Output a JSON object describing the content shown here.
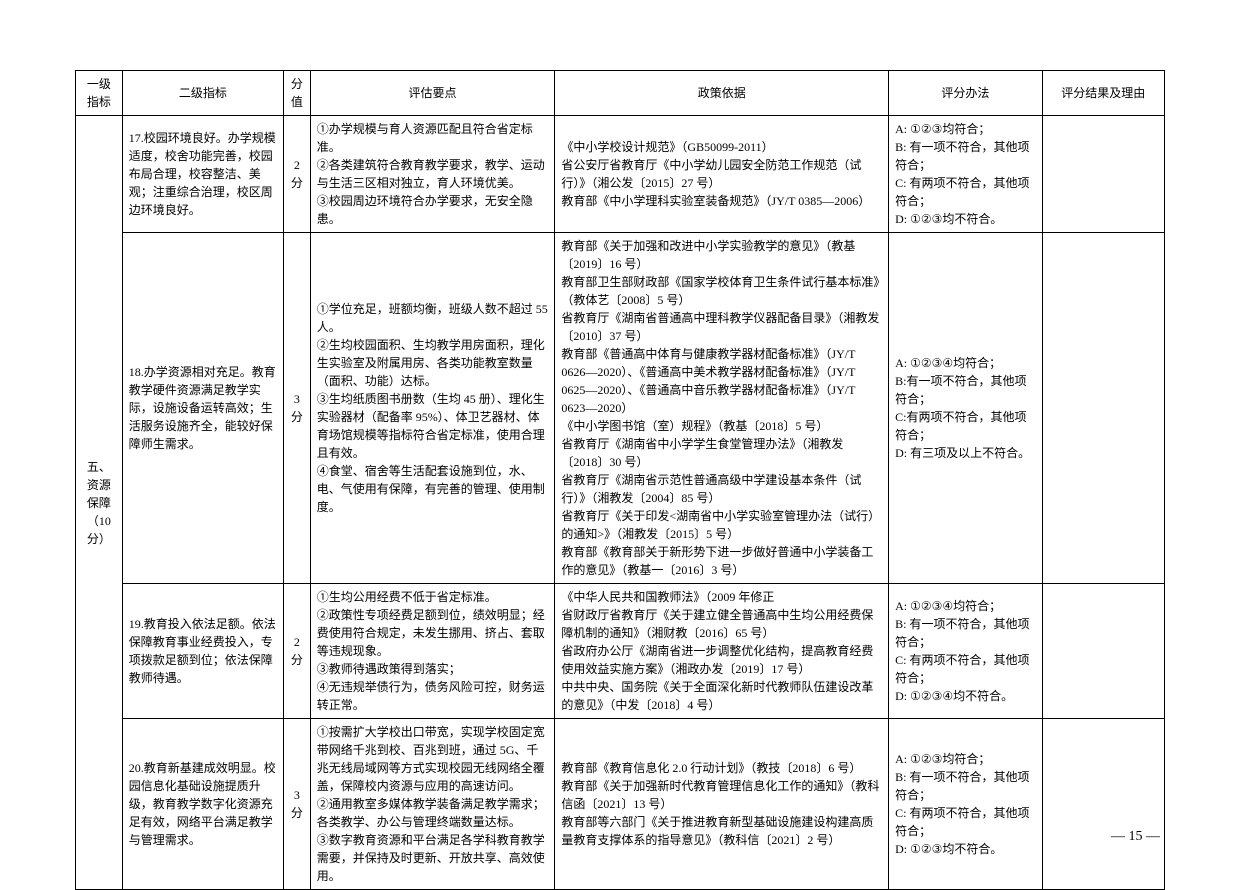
{
  "headers": {
    "level1": "一级\n指标",
    "level2": "二级指标",
    "score": "分\n值",
    "points": "评估要点",
    "basis": "政策依据",
    "method": "评分办法",
    "result": "评分结果及理由"
  },
  "category": {
    "name": "五、\n资源\n保障\n（10 分）"
  },
  "rows": [
    {
      "level2": "17.校园环境良好。办学规模适度，校舍功能完善，校园布局合理，校容整洁、美观；注重综合治理，校区周边环境良好。",
      "score": "2\n分",
      "points": "①办学规模与育人资源匹配且符合省定标准。\n②各类建筑符合教育教学要求，教学、运动与生活三区相对独立，育人环境优美。\n③校园周边环境符合办学要求，无安全隐患。",
      "basis": "《中小学校设计规范》（GB50099-2011）\n省公安厅省教育厅《中小学幼儿园安全防范工作规范（试行）》（湘公发〔2015〕27 号）\n教育部《中小学理科实验室装备规范》（JY/T 0385—2006）",
      "method": "A: ①②③均符合；\nB: 有一项不符合，其他项符合；\nC: 有两项不符合，其他项符合；\nD: ①②③均不符合。"
    },
    {
      "level2": "18.办学资源相对充足。教育教学硬件资源满足教学实际，设施设备运转高效；生活服务设施齐全，能较好保障师生需求。",
      "score": "3\n分",
      "points": "①学位充足，班额均衡，班级人数不超过 55 人。\n②生均校园面积、生均教学用房面积，理化生实验室及附属用房、各类功能教室数量（面积、功能）达标。\n③生均纸质图书册数（生均 45 册）、理化生实验器材（配备率 95%）、体卫艺器材、体育场馆规模等指标符合省定标准，使用合理且有效。\n④食堂、宿舍等生活配套设施到位，水、电、气使用有保障，有完善的管理、使用制度。",
      "basis": "教育部《关于加强和改进中小学实验教学的意见》（教基〔2019〕16 号）\n教育部卫生部财政部《国家学校体育卫生条件试行基本标准》（教体艺〔2008〕5 号）\n省教育厅《湖南省普通高中理科教学仪器配备目录》（湘教发〔2010〕37 号）\n教育部《普通高中体育与健康教学器材配备标准》（JY/T 0626—2020）、《普通高中美术教学器材配备标准》（JY/T 0625—2020）、《普通高中音乐教学器材配备标准》（JY/T 0623—2020）\n《中小学图书馆（室）规程》（教基〔2018〕5 号）\n省教育厅《湖南省中小学学生食堂管理办法》（湘教发〔2018〕30 号）\n省教育厅《湖南省示范性普通高级中学建设基本条件（试行）》（湘教发〔2004〕85 号）\n省教育厅《关于印发<湖南省中小学实验室管理办法（试行）的通知>》（湘教发〔2015〕5 号）\n教育部《教育部关于新形势下进一步做好普通中小学装备工作的意见》（教基一〔2016〕3 号）",
      "method": "A: ①②③④均符合；\nB:有一项不符合，其他项符合；\nC:有两项不符合，其他项符合；\nD: 有三项及以上不符合。"
    },
    {
      "level2": "19.教育投入依法足额。依法保障教育事业经费投入，专项拨款足额到位；依法保障教师待遇。",
      "score": "2\n分",
      "points": "①生均公用经费不低于省定标准。\n②政策性专项经费足额到位，绩效明显；经费使用符合规定，未发生挪用、挤占、套取等违规现象。\n③教师待遇政策得到落实；\n④无违规举债行为，债务风险可控，财务运转正常。",
      "basis": "《中华人民共和国教师法》（2009 年修正\n省财政厅省教育厅《关于建立健全普通高中生均公用经费保障机制的通知》（湘财教〔2016〕65 号）\n省政府办公厅《湖南省进一步调整优化结构，提高教育经费使用效益实施方案》（湘政办发〔2019〕17 号）\n中共中央、国务院《关于全面深化新时代教师队伍建设改革的意见》（中发〔2018〕4 号）",
      "method": "A: ①②③④均符合；\nB: 有一项不符合，其他项符合；\nC: 有两项不符合，其他项符合；\nD: ①②③④均不符合。"
    },
    {
      "level2": "20.教育新基建成效明显。校园信息化基础设施提质升级，教育教学数字化资源充足有效，网络平台满足教学与管理需求。",
      "score": "3\n分",
      "points": "①按需扩大学校出口带宽，实现学校固定宽带网络千兆到校、百兆到班，通过 5G、千兆无线局域网等方式实现校园无线网络全覆盖，保障校内资源与应用的高速访问。\n②通用教室多媒体教学装备满足教学需求；各类教学、办公与管理终端数量达标。\n③数字教育资源和平台满足各学科教育教学需要，并保持及时更新、开放共享、高效使用。",
      "basis": "教育部《教育信息化 2.0 行动计划》（教技〔2018〕6 号）\n教育部《关于加强新时代教育管理信息化工作的通知》（教科信函〔2021〕13 号）\n教育部等六部门《关于推进教育新型基础设施建设构建高质量教育支撑体系的指导意见》（教科信〔2021〕2 号）",
      "method": "A: ①②③均符合；\nB: 有一项不符合，其他项符合；\nC: 有两项不符合，其他项符合；\nD: ①②③均不符合。"
    }
  ],
  "pageNum": "— 15 —"
}
